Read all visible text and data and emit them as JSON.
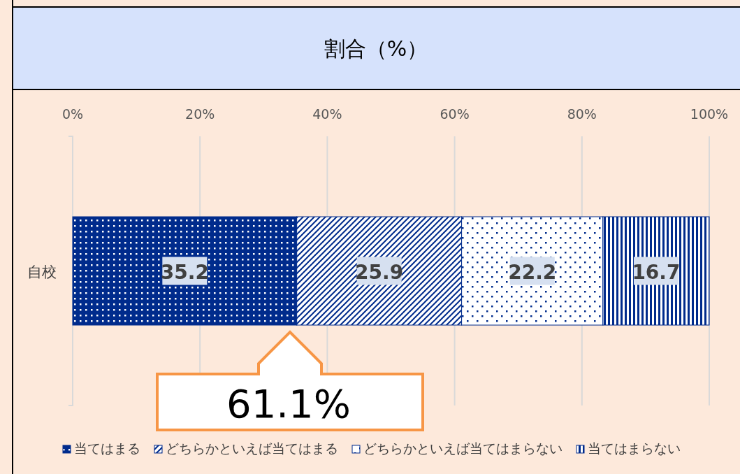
{
  "chart_data": {
    "type": "bar",
    "orientation": "horizontal",
    "stacked": true,
    "title": "割合（%）",
    "categories": [
      "自校"
    ],
    "series": [
      {
        "name": "当てはまる",
        "color": "#002b8c",
        "values": [
          35.2
        ]
      },
      {
        "name": "どちらかといえば当てはまる",
        "color": "#002b8c",
        "values": [
          25.9
        ]
      },
      {
        "name": "どちらかといえば当てはまらない",
        "color": "#002b8c",
        "values": [
          22.2
        ]
      },
      {
        "name": "当てはまらない",
        "color": "#002b8c",
        "values": [
          16.7
        ]
      }
    ],
    "xlim": [
      0,
      100
    ],
    "xticks": [
      {
        "value": 0,
        "label": "0%"
      },
      {
        "value": 20,
        "label": "20%"
      },
      {
        "value": 40,
        "label": "40%"
      },
      {
        "value": 60,
        "label": "60%"
      },
      {
        "value": 80,
        "label": "80%"
      },
      {
        "value": 100,
        "label": "100%"
      }
    ],
    "grid": "x",
    "data_labels": true,
    "legend": "bottom",
    "annotations": [
      "61.1%"
    ]
  }
}
